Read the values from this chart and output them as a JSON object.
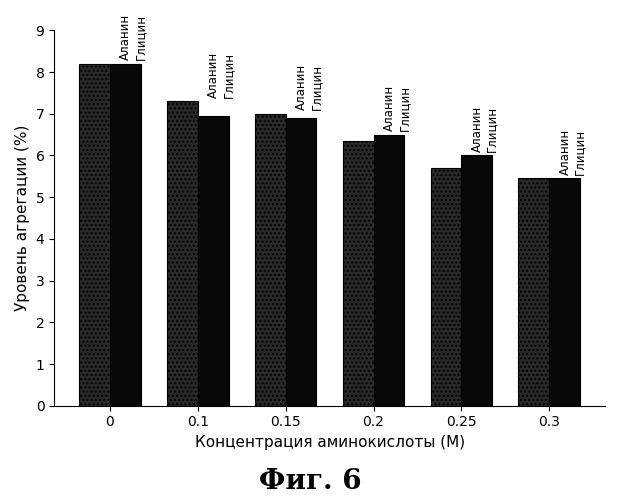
{
  "concentrations": [
    "0",
    "0.1",
    "0.15",
    "0.2",
    "0.25",
    "0.3"
  ],
  "alanin_values": [
    8.2,
    7.3,
    7.0,
    6.35,
    5.7,
    5.45
  ],
  "glycin_values": [
    8.2,
    6.95,
    6.9,
    6.5,
    6.0,
    5.45
  ],
  "alanin_color": "#1a1a1a",
  "glycin_color": "#050505",
  "alanin_hatch": "//..//",
  "xlabel": "Концентрация аминокислоты (М)",
  "ylabel": "Уровень агрегации (%)",
  "fig_label": "Фиг. 6",
  "ylim": [
    0,
    9
  ],
  "yticks": [
    0,
    1,
    2,
    3,
    4,
    5,
    6,
    7,
    8,
    9
  ],
  "bar_width": 0.35,
  "legend_alanin": "Аланин",
  "legend_glycin": "Глицин",
  "background_color": "#ffffff",
  "fig_label_fontsize": 20,
  "label_fontsize": 11,
  "tick_fontsize": 10,
  "annotation_fontsize": 8.5
}
